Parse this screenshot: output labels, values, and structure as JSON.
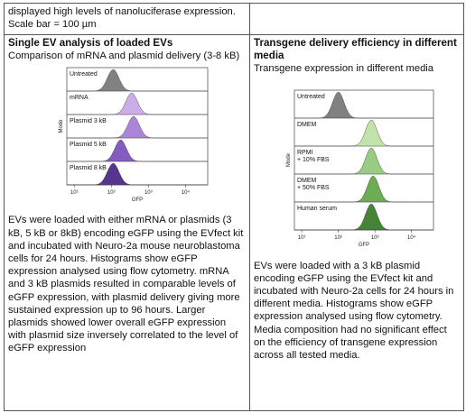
{
  "top_row": {
    "left_line1": "displayed high levels of nanoluciferase expression.",
    "left_line2": "Scale bar = 100 µm",
    "right_text": ""
  },
  "left_cell": {
    "heading": "Single EV analysis of loaded EVs",
    "subheading": "Comparison of mRNA and plasmid delivery (3-8 kB)",
    "paragraph": "EVs were loaded with either mRNA or plasmids (3 kB, 5 kB or 8kB) encoding eGFP using the EVfect kit and incubated with Neuro-2a mouse neuroblastoma cells for 24 hours. Histograms show eGFP expression analysed using flow cytometry. mRNA and 3 kB plasmids resulted in comparable levels of eGFP expression, with plasmid delivery giving more sustained expression up to 96 hours. Larger plasmids showed lower overall eGFP expression with plasmid size inversely correlated to the level of eGFP expression"
  },
  "right_cell": {
    "heading": "Transgene delivery efficiency in different media",
    "subheading": "Transgene expression in different media",
    "paragraph": "EVs were loaded with a 3 kB plasmid encoding eGFP using the EVfect kit and incubated with Neuro-2a cells for 24 hours in different media. Histograms show eGFP expression analysed using flow cytometry. Media composition had no significant effect on the efficiency of transgene expression across all tested media."
  },
  "figure_left": {
    "ylabel": "Mode",
    "xlabel": "GFP",
    "tick_labels": [
      "10¹",
      "10²",
      "10³",
      "10⁴"
    ],
    "panels": [
      {
        "label": "Untreated",
        "peak_log": 2.05,
        "color": "#7a7a7a"
      },
      {
        "label": "mRNA",
        "peak_log": 2.55,
        "color": "#c9a9e6"
      },
      {
        "label": "Plasmid 3 kB",
        "peak_log": 2.6,
        "color": "#a77fd6"
      },
      {
        "label": "Plasmid 5 kB",
        "peak_log": 2.25,
        "color": "#7f52bd"
      },
      {
        "label": "Plasmid 8 kB",
        "peak_log": 2.05,
        "color": "#4d2a86"
      }
    ]
  },
  "figure_right": {
    "ylabel": "Mode",
    "xlabel": "GFP",
    "tick_labels": [
      "10¹",
      "10²",
      "10³",
      "10⁴"
    ],
    "panels": [
      {
        "label": "Untreated",
        "label2": "",
        "peak_log": 2.0,
        "color": "#7a7a7a"
      },
      {
        "label": "DMEM",
        "label2": "",
        "peak_log": 2.9,
        "color": "#bfe0a8"
      },
      {
        "label": "RPMI",
        "label2": "+ 10% FBS",
        "peak_log": 2.9,
        "color": "#94c97b"
      },
      {
        "label": "DMEM",
        "label2": "+ 50% FBS",
        "peak_log": 2.95,
        "color": "#63a84b"
      },
      {
        "label": "Human serum",
        "label2": "",
        "peak_log": 2.9,
        "color": "#3b7d2c"
      }
    ]
  }
}
